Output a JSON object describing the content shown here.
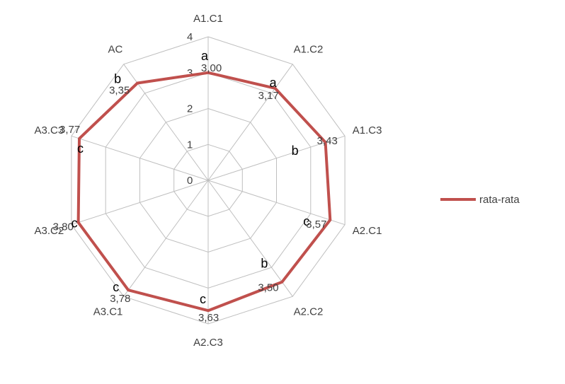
{
  "chart_data": {
    "type": "radar",
    "categories": [
      "A1.C1",
      "A1.C2",
      "A1.C3",
      "A2.C1",
      "A2.C2",
      "A2.C3",
      "A3.C1",
      "A3.C2",
      "A3.C3",
      "AC"
    ],
    "series": [
      {
        "name": "rata-rata",
        "values": [
          3.0,
          3.17,
          3.43,
          3.57,
          3.5,
          3.63,
          3.78,
          3.8,
          3.77,
          3.35
        ],
        "color": "#c0504d"
      }
    ],
    "data_labels": [
      "3,00",
      "3,17",
      "3,43",
      "3,57",
      "3,50",
      "3,63",
      "3,78",
      "3,80",
      "3,77",
      "3,35"
    ],
    "significance_letters": [
      "a",
      "a",
      "b",
      "c",
      "b",
      "c",
      "c",
      "c",
      "c",
      "b"
    ],
    "r_ticks": [
      "0",
      "1",
      "2",
      "3",
      "4"
    ],
    "rlim": [
      0,
      4
    ],
    "grid": true,
    "legend_position": "right",
    "grid_color": "#bfbfbf"
  }
}
